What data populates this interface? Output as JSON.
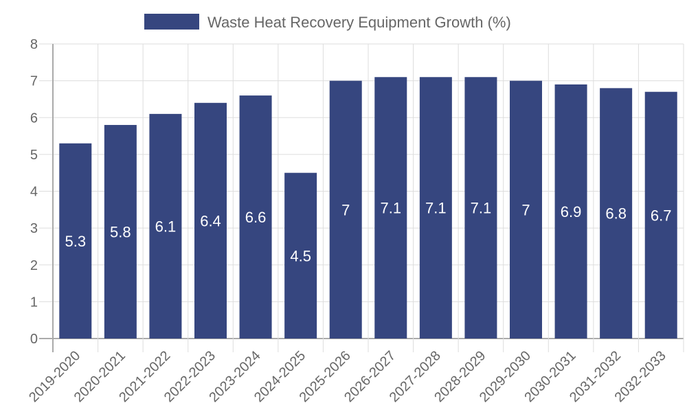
{
  "chart_data": {
    "type": "bar",
    "title": "",
    "legend": {
      "label": "Waste Heat Recovery Equipment Growth (%)",
      "placement": "top-center"
    },
    "categories": [
      "2019-2020",
      "2020-2021",
      "2021-2022",
      "2022-2023",
      "2023-2024",
      "2024-2025",
      "2025-2026",
      "2026-2027",
      "2027-2028",
      "2028-2029",
      "2029-2030",
      "2030-2031",
      "2031-2032",
      "2032-2033"
    ],
    "series": [
      {
        "name": "Waste Heat Recovery Equipment Growth (%)",
        "values": [
          5.3,
          5.8,
          6.1,
          6.4,
          6.6,
          4.5,
          7,
          7.1,
          7.1,
          7.1,
          7,
          6.9,
          6.8,
          6.7
        ],
        "color": "#36467f"
      }
    ],
    "yticks": [
      "0",
      "1",
      "2",
      "3",
      "4",
      "5",
      "6",
      "7",
      "8"
    ],
    "ylim": [
      0,
      8
    ],
    "xlabel": "",
    "ylabel": "",
    "grid": true,
    "data_labels": true
  }
}
